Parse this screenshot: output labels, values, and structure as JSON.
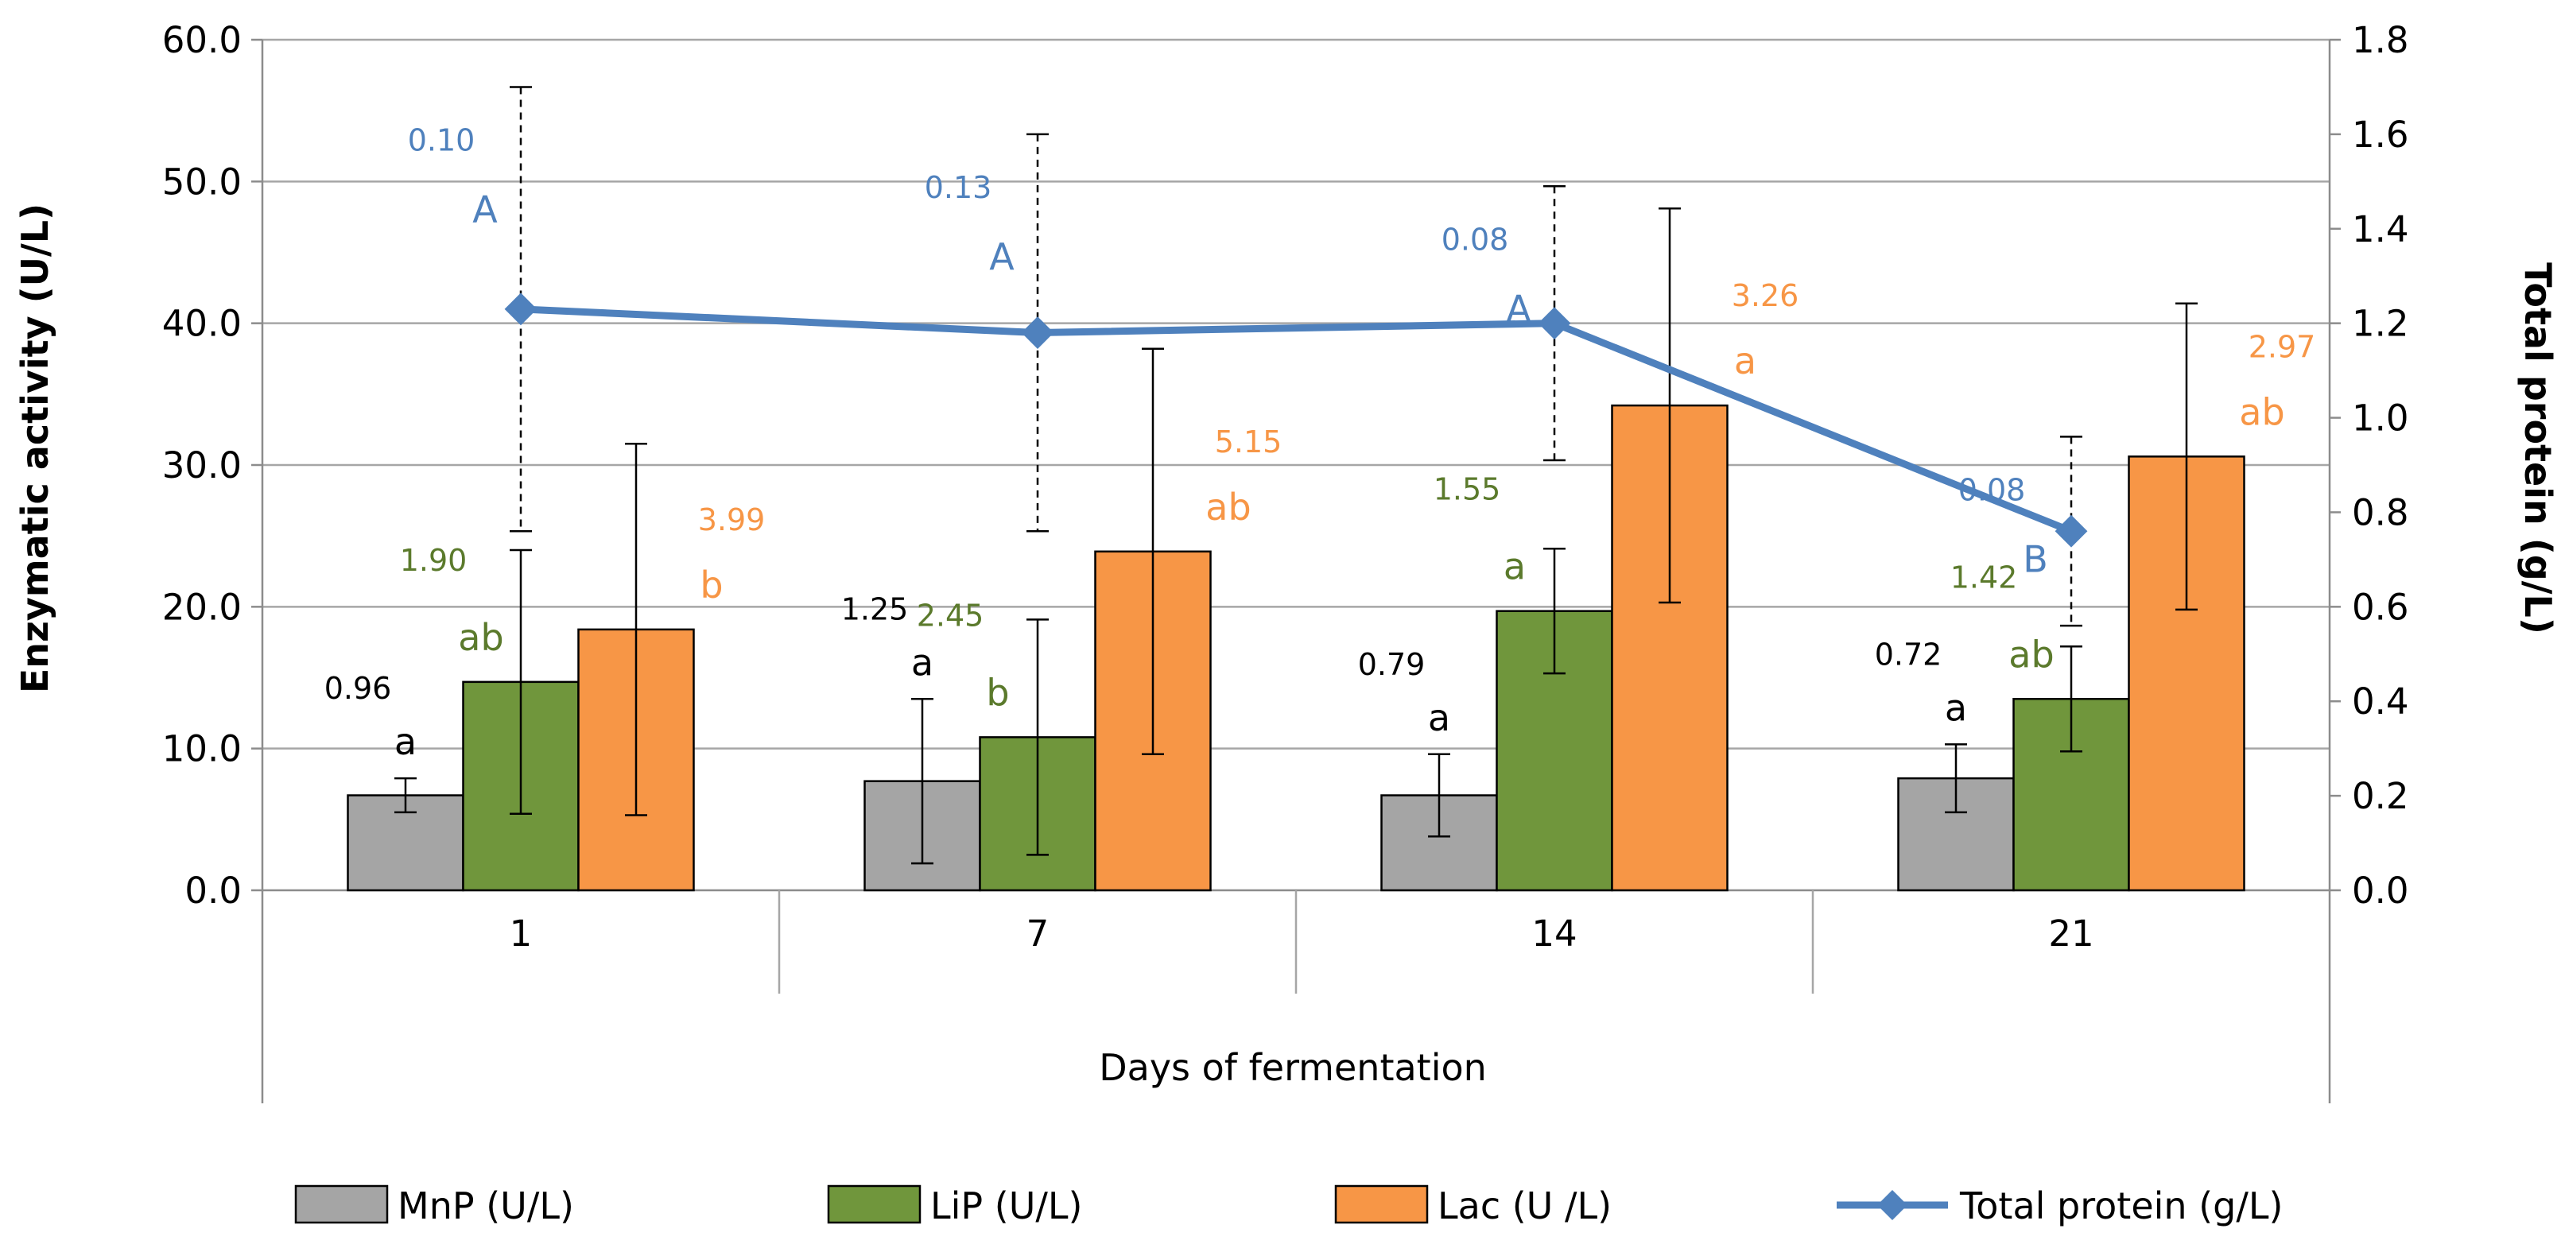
{
  "chart_data": {
    "type": "bar",
    "xlabel": "Days of fermentation",
    "ylabel": "Enzymatic activity (U/L)",
    "y2label": "Total protein (g/L)",
    "categories": [
      "1",
      "7",
      "14",
      "21"
    ],
    "ylim": [
      0,
      60
    ],
    "y_ticks": [
      "0.0",
      "10.0",
      "20.0",
      "30.0",
      "40.0",
      "50.0",
      "60.0"
    ],
    "y2lim": [
      0,
      1.8
    ],
    "y2_ticks": [
      "0.0",
      "0.2",
      "0.4",
      "0.6",
      "0.8",
      "1.0",
      "1.2",
      "1.4",
      "1.6",
      "1.8"
    ],
    "grid": true,
    "legend_position": "bottom",
    "series": [
      {
        "name": "MnP (U/L)",
        "kind": "bar",
        "axis": "left",
        "color": "#a5a5a5",
        "values": [
          6.7,
          7.7,
          6.7,
          7.9
        ],
        "error": [
          1.2,
          5.8,
          2.9,
          2.4
        ],
        "sd_labels": [
          "0.96",
          "1.25",
          "0.79",
          "0.72"
        ],
        "letters": [
          "a",
          "a",
          "a",
          "a"
        ],
        "label_color": "#000000"
      },
      {
        "name": "LiP  (U/L)",
        "kind": "bar",
        "axis": "left",
        "color": "#70963c",
        "values": [
          14.7,
          10.8,
          19.7,
          13.5
        ],
        "error": [
          9.3,
          8.3,
          4.4,
          3.7
        ],
        "sd_labels": [
          "1.90",
          "2.45",
          "1.55",
          "1.42"
        ],
        "letters": [
          "ab",
          "b",
          "a",
          "ab"
        ],
        "label_color": "#5b7a2c"
      },
      {
        "name": "Lac (U /L)",
        "kind": "bar",
        "axis": "left",
        "color": "#f79646",
        "values": [
          18.4,
          23.9,
          34.2,
          30.6
        ],
        "error": [
          13.1,
          14.3,
          13.9,
          10.8
        ],
        "sd_labels": [
          "3.99",
          "5.15",
          "3.26",
          "2.97"
        ],
        "letters": [
          "b",
          "ab",
          "a",
          "ab"
        ],
        "label_color": "#f79646"
      },
      {
        "name": "Total protein (g/L)",
        "kind": "line",
        "axis": "right",
        "color": "#4f81bd",
        "values": [
          1.23,
          1.18,
          1.2,
          0.76
        ],
        "error": [
          0.47,
          0.42,
          0.29,
          0.2
        ],
        "sd_labels": [
          "0.10",
          "0.13",
          "0.08",
          "0.08"
        ],
        "letters": [
          "A",
          "A",
          "A",
          "B"
        ],
        "label_color": "#4f81bd"
      }
    ]
  }
}
